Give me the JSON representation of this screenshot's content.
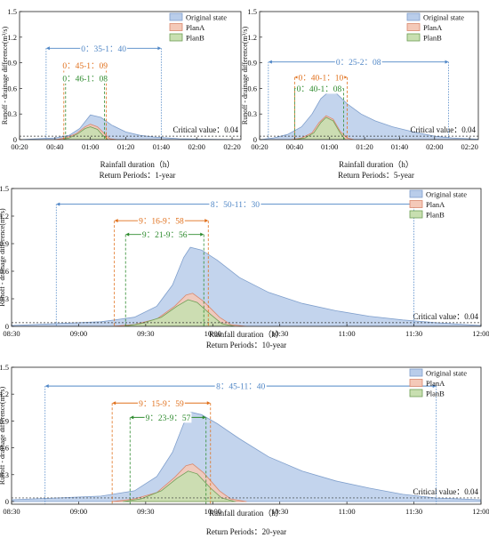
{
  "figure": {
    "ylabel": "Runoff - drainage difference(m³/s)",
    "xlabel": "Rainfall duration（h）",
    "legend": [
      "Original state",
      "PlanA",
      "PlanB"
    ],
    "critical_label": "Critical value：0.04"
  },
  "colors": {
    "original_fill": "#b9cdea",
    "original_line": "#7f9fcc",
    "planA_fill": "#f4c9b8",
    "planA_line": "#d9886d",
    "planB_fill": "#c8dfb0",
    "planB_line": "#6e9e55",
    "blue": "#4f86c6",
    "orange": "#e0701c",
    "green": "#2e8b2e"
  },
  "chart_data": [
    {
      "type": "area",
      "return_period": "Return Periods：1-year",
      "xlabel": "Rainfall duration（h）",
      "ylabel": "Runoff - drainage difference(m³/s)",
      "xlim": [
        20,
        145
      ],
      "ylim": [
        0,
        1.5
      ],
      "xticks": [
        20,
        40,
        60,
        80,
        100,
        120,
        140
      ],
      "xtick_labels": [
        "00:20",
        "00:40",
        "01:00",
        "01:20",
        "01:40",
        "02:00",
        "02:20"
      ],
      "yticks": [
        0,
        0.3,
        0.6,
        0.9,
        1.2,
        1.5
      ],
      "ytick_labels": [
        "0",
        "0.3",
        "0.6",
        "0.9",
        "1.2",
        "1.5"
      ],
      "critical": 0.04,
      "series": [
        {
          "name": "Original state",
          "points": [
            [
              20,
              0
            ],
            [
              30,
              0.01
            ],
            [
              40,
              0.02
            ],
            [
              48,
              0.05
            ],
            [
              54,
              0.13
            ],
            [
              60,
              0.29
            ],
            [
              66,
              0.26
            ],
            [
              72,
              0.17
            ],
            [
              80,
              0.09
            ],
            [
              88,
              0.05
            ],
            [
              96,
              0.03
            ],
            [
              104,
              0.02
            ],
            [
              110,
              0.01
            ],
            [
              125,
              0.005
            ],
            [
              145,
              0
            ]
          ]
        },
        {
          "name": "PlanA",
          "points": [
            [
              40,
              0
            ],
            [
              46,
              0.02
            ],
            [
              52,
              0.07
            ],
            [
              57,
              0.15
            ],
            [
              60,
              0.18
            ],
            [
              64,
              0.15
            ],
            [
              68,
              0.07
            ],
            [
              71,
              0.01
            ],
            [
              75,
              0
            ]
          ]
        },
        {
          "name": "PlanB",
          "points": [
            [
              44,
              0
            ],
            [
              48,
              0.02
            ],
            [
              53,
              0.07
            ],
            [
              57,
              0.13
            ],
            [
              60,
              0.15
            ],
            [
              64,
              0.12
            ],
            [
              67,
              0.05
            ],
            [
              70,
              0
            ]
          ]
        }
      ],
      "spans": [
        {
          "label": "0：35-1：40",
          "color": "blue",
          "start": 35,
          "end": 100,
          "y": 1.07
        },
        {
          "label": "0：45-1：09",
          "color": "orange",
          "start": 45,
          "end": 69,
          "y": 0.87
        },
        {
          "label": "0：46-1：08",
          "color": "green",
          "start": 46,
          "end": 68,
          "y": 0.72
        }
      ]
    },
    {
      "type": "area",
      "return_period": "Return Periods：5-year",
      "xlabel": "Rainfall duration（h）",
      "ylabel": "Runoff - drainage difference(m³/s)",
      "xlim": [
        20,
        145
      ],
      "ylim": [
        0,
        1.5
      ],
      "xticks": [
        20,
        40,
        60,
        80,
        100,
        120,
        140
      ],
      "xtick_labels": [
        "00:20",
        "00:40",
        "01:00",
        "01:20",
        "01:40",
        "02:00",
        "02:20"
      ],
      "yticks": [
        0,
        0.3,
        0.6,
        0.9,
        1.2,
        1.5
      ],
      "ytick_labels": [
        "0",
        "0.3",
        "0.6",
        "0.9",
        "1.2",
        "1.5"
      ],
      "critical": 0.04,
      "series": [
        {
          "name": "Original state",
          "points": [
            [
              20,
              0
            ],
            [
              28,
              0.02
            ],
            [
              36,
              0.06
            ],
            [
              44,
              0.15
            ],
            [
              50,
              0.3
            ],
            [
              55,
              0.48
            ],
            [
              60,
              0.57
            ],
            [
              64,
              0.54
            ],
            [
              70,
              0.42
            ],
            [
              78,
              0.3
            ],
            [
              86,
              0.22
            ],
            [
              96,
              0.15
            ],
            [
              108,
              0.09
            ],
            [
              120,
              0.04
            ],
            [
              130,
              0.02
            ],
            [
              145,
              0.005
            ]
          ]
        },
        {
          "name": "PlanA",
          "points": [
            [
              38,
              0
            ],
            [
              44,
              0.02
            ],
            [
              50,
              0.08
            ],
            [
              54,
              0.2
            ],
            [
              58,
              0.28
            ],
            [
              62,
              0.24
            ],
            [
              66,
              0.1
            ],
            [
              70,
              0.02
            ],
            [
              74,
              0
            ]
          ]
        },
        {
          "name": "PlanB",
          "points": [
            [
              40,
              0
            ],
            [
              46,
              0.02
            ],
            [
              51,
              0.08
            ],
            [
              55,
              0.2
            ],
            [
              58,
              0.26
            ],
            [
              62,
              0.22
            ],
            [
              66,
              0.08
            ],
            [
              69,
              0
            ]
          ]
        }
      ],
      "spans": [
        {
          "label": "0：25-2：08",
          "color": "blue",
          "start": 25,
          "end": 128,
          "y": 0.91
        },
        {
          "label": "0：40-1：10",
          "color": "orange",
          "start": 40,
          "end": 70,
          "y": 0.73
        },
        {
          "label": "0：40-1：08",
          "color": "green",
          "start": 40,
          "end": 68,
          "y": 0.6
        }
      ]
    },
    {
      "type": "area",
      "return_period": "Return Periods：10-year",
      "xlabel": "Rainfall duration（h）",
      "ylabel": "Runoff - drainage difference(m³/s)",
      "xlim": [
        510,
        720
      ],
      "ylim": [
        0,
        1.5
      ],
      "xticks": [
        510,
        540,
        570,
        600,
        630,
        660,
        690,
        720
      ],
      "xtick_labels": [
        "08:30",
        "09:00",
        "09:30",
        "10:00",
        "10:30",
        "11:00",
        "11:30",
        "12:00"
      ],
      "yticks": [
        0,
        0.3,
        0.6,
        0.9,
        1.2,
        1.5
      ],
      "ytick_labels": [
        "0",
        "0.3",
        "0.6",
        "0.9",
        "1.2",
        "1.5"
      ],
      "critical": 0.04,
      "series": [
        {
          "name": "Original state",
          "points": [
            [
              510,
              0.01
            ],
            [
              530,
              0.03
            ],
            [
              550,
              0.05
            ],
            [
              565,
              0.1
            ],
            [
              575,
              0.22
            ],
            [
              582,
              0.45
            ],
            [
              587,
              0.75
            ],
            [
              590,
              0.86
            ],
            [
              595,
              0.83
            ],
            [
              602,
              0.72
            ],
            [
              612,
              0.53
            ],
            [
              625,
              0.37
            ],
            [
              640,
              0.25
            ],
            [
              655,
              0.17
            ],
            [
              670,
              0.11
            ],
            [
              685,
              0.07
            ],
            [
              700,
              0.04
            ],
            [
              720,
              0.01
            ]
          ]
        },
        {
          "name": "PlanA",
          "points": [
            [
              555,
              0
            ],
            [
              565,
              0.02
            ],
            [
              575,
              0.08
            ],
            [
              583,
              0.22
            ],
            [
              588,
              0.34
            ],
            [
              591,
              0.36
            ],
            [
              596,
              0.27
            ],
            [
              603,
              0.1
            ],
            [
              608,
              0.02
            ],
            [
              615,
              0
            ]
          ]
        },
        {
          "name": "PlanB",
          "points": [
            [
              560,
              0
            ],
            [
              568,
              0.03
            ],
            [
              577,
              0.1
            ],
            [
              584,
              0.22
            ],
            [
              589,
              0.29
            ],
            [
              593,
              0.26
            ],
            [
              599,
              0.13
            ],
            [
              604,
              0.03
            ],
            [
              610,
              0
            ]
          ]
        }
      ],
      "spans": [
        {
          "label": "8：50-11：30",
          "color": "blue",
          "start": 530,
          "end": 690,
          "y": 1.33
        },
        {
          "label": "9：16-9：58",
          "color": "orange",
          "start": 556,
          "end": 598,
          "y": 1.15
        },
        {
          "label": "9：21-9：56",
          "color": "green",
          "start": 561,
          "end": 596,
          "y": 1.0
        }
      ]
    },
    {
      "type": "area",
      "return_period": "Return Periods：20-year",
      "xlabel": "Rainfall duration（h）",
      "ylabel": "Runoff - drainage difference(m³/s)",
      "xlim": [
        510,
        720
      ],
      "ylim": [
        -0.03,
        1.5
      ],
      "xticks": [
        510,
        540,
        570,
        600,
        630,
        660,
        690,
        720
      ],
      "xtick_labels": [
        "08:30",
        "09:00",
        "09:30",
        "10:00",
        "10:30",
        "11:00",
        "11:30",
        "12:00"
      ],
      "yticks": [
        0,
        0.3,
        0.6,
        0.9,
        1.2,
        1.5
      ],
      "ytick_labels": [
        "0",
        "0.3",
        "0.6",
        "0.9",
        "1.2",
        "1.5"
      ],
      "critical": 0.04,
      "series": [
        {
          "name": "Original state",
          "points": [
            [
              510,
              0.02
            ],
            [
              530,
              0.04
            ],
            [
              550,
              0.06
            ],
            [
              565,
              0.12
            ],
            [
              575,
              0.28
            ],
            [
              582,
              0.55
            ],
            [
              587,
              0.87
            ],
            [
              590,
              1.0
            ],
            [
              595,
              0.97
            ],
            [
              602,
              0.87
            ],
            [
              612,
              0.7
            ],
            [
              625,
              0.5
            ],
            [
              640,
              0.34
            ],
            [
              655,
              0.23
            ],
            [
              670,
              0.15
            ],
            [
              685,
              0.08
            ],
            [
              700,
              0.04
            ],
            [
              720,
              0.02
            ]
          ]
        },
        {
          "name": "PlanA",
          "points": [
            [
              555,
              0
            ],
            [
              565,
              0.03
            ],
            [
              575,
              0.1
            ],
            [
              583,
              0.27
            ],
            [
              588,
              0.4
            ],
            [
              591,
              0.42
            ],
            [
              596,
              0.32
            ],
            [
              603,
              0.12
            ],
            [
              608,
              0.03
            ],
            [
              615,
              0
            ]
          ]
        },
        {
          "name": "PlanB",
          "points": [
            [
              560,
              0
            ],
            [
              568,
              0.03
            ],
            [
              577,
              0.12
            ],
            [
              584,
              0.26
            ],
            [
              589,
              0.34
            ],
            [
              593,
              0.31
            ],
            [
              599,
              0.15
            ],
            [
              604,
              0.04
            ],
            [
              610,
              0
            ]
          ]
        }
      ],
      "spans": [
        {
          "label": "8：45-11：40",
          "color": "blue",
          "start": 525,
          "end": 700,
          "y": 1.29
        },
        {
          "label": "9：15-9：59",
          "color": "orange",
          "start": 555,
          "end": 599,
          "y": 1.1
        },
        {
          "label": "9：23-9：57",
          "color": "green",
          "start": 563,
          "end": 597,
          "y": 0.94
        }
      ]
    }
  ]
}
